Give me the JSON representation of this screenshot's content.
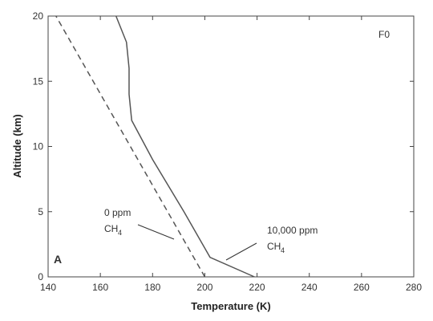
{
  "chart_data": {
    "type": "line",
    "xlabel": "Temperature (K)",
    "ylabel": "Altitude (km)",
    "xlim": [
      140,
      280
    ],
    "xticks": [
      140,
      160,
      180,
      200,
      220,
      240,
      260,
      280
    ],
    "ylim": [
      0,
      20
    ],
    "yticks": [
      0,
      5,
      10,
      15,
      20
    ],
    "series": [
      {
        "color": "#555555",
        "dash": true,
        "x": [
          200,
          143
        ],
        "values": [
          0,
          20
        ]
      },
      {
        "color": "#555555",
        "dash": false,
        "x": [
          219,
          202,
          192,
          180,
          172,
          171,
          171,
          170,
          166
        ],
        "values": [
          0,
          1.5,
          5,
          9,
          12,
          14,
          16,
          18,
          20
        ]
      }
    ],
    "annotations": [
      {
        "lines": [
          "0 ppm",
          "CH"
        ],
        "subscript": "4"
      },
      {
        "lines": [
          "10,000 ppm",
          "CH"
        ],
        "subscript": "4"
      }
    ],
    "panel_label": "A",
    "case_label": "F0"
  }
}
